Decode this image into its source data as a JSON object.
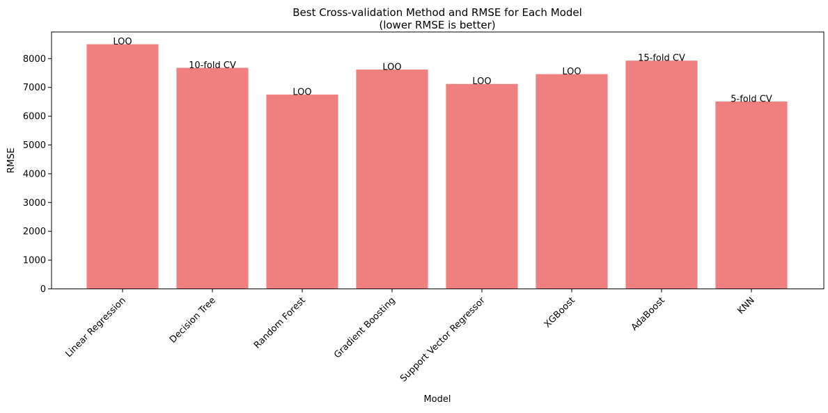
{
  "chart_data": {
    "type": "bar",
    "title": "Best Cross-validation Method and RMSE for Each Model",
    "subtitle": "(lower RMSE is better)",
    "xlabel": "Model",
    "ylabel": "RMSE",
    "ylim": [
      0,
      8925
    ],
    "yticks": [
      0,
      1000,
      2000,
      3000,
      4000,
      5000,
      6000,
      7000,
      8000
    ],
    "categories": [
      "Linear Regression",
      "Decision Tree",
      "Random Forest",
      "Gradient Boosting",
      "Support Vector Regressor",
      "XGBoost",
      "AdaBoost",
      "KNN"
    ],
    "values": [
      8500,
      7680,
      6750,
      7620,
      7120,
      7460,
      7930,
      6510
    ],
    "bar_labels": [
      "LOO",
      "10-fold CV",
      "LOO",
      "LOO",
      "LOO",
      "LOO",
      "15-fold CV",
      "5-fold CV"
    ],
    "bar_color": "#f08080",
    "grid": false,
    "legend": "none"
  }
}
